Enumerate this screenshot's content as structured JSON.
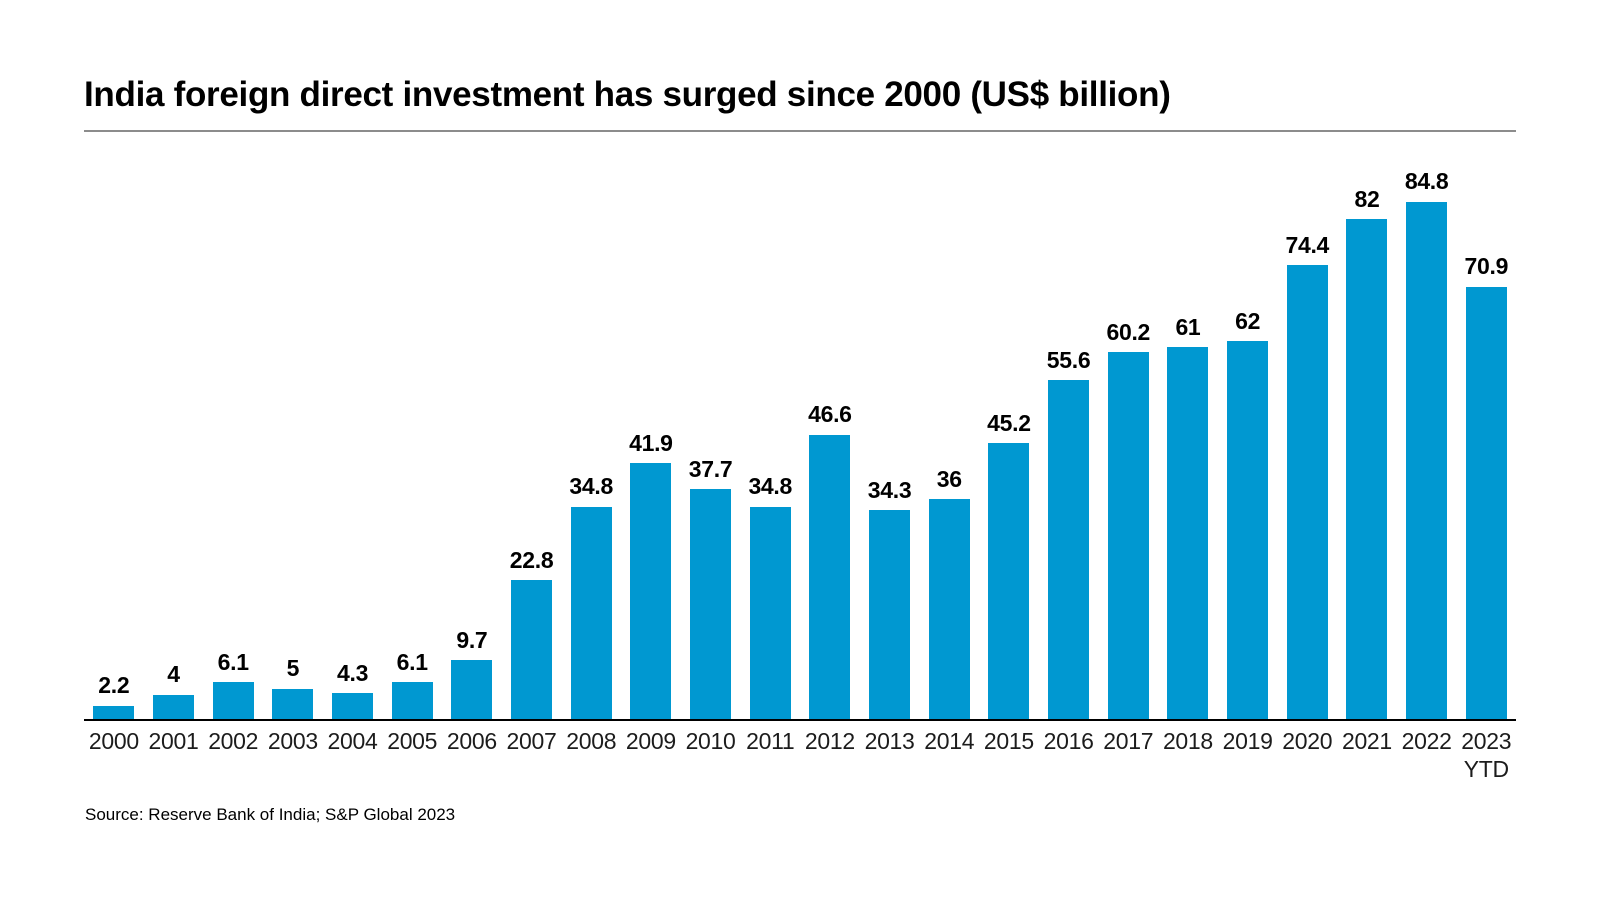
{
  "title": "India foreign direct investment has surged since 2000 (US$ billion)",
  "source": "Source: Reserve Bank of India; S&P Global 2023",
  "chart_data": {
    "type": "bar",
    "title": "India foreign direct investment has surged since 2000 (US$ billion)",
    "categories": [
      "2000",
      "2001",
      "2002",
      "2003",
      "2004",
      "2005",
      "2006",
      "2007",
      "2008",
      "2009",
      "2010",
      "2011",
      "2012",
      "2013",
      "2014",
      "2015",
      "2016",
      "2017",
      "2018",
      "2019",
      "2020",
      "2021",
      "2022",
      "2023 YTD"
    ],
    "values": [
      2.2,
      4,
      6.1,
      5,
      4.3,
      6.1,
      9.7,
      22.8,
      34.8,
      41.9,
      37.7,
      34.8,
      46.6,
      34.3,
      36,
      45.2,
      55.6,
      60.2,
      61,
      62,
      74.4,
      82,
      84.8,
      70.9
    ],
    "value_labels": [
      "2.2",
      "4",
      "6.1",
      "5",
      "4.3",
      "6.1",
      "9.7",
      "22.8",
      "34.8",
      "41.9",
      "37.7",
      "34.8",
      "46.6",
      "34.3",
      "36",
      "45.2",
      "55.6",
      "60.2",
      "61",
      "62",
      "74.4",
      "82",
      "84.8",
      "70.9"
    ],
    "tick_labels": [
      "2000",
      "2001",
      "2002",
      "2003",
      "2004",
      "2005",
      "2006",
      "2007",
      "2008",
      "2009",
      "2010",
      "2011",
      "2012",
      "2013",
      "2014",
      "2015",
      "2016",
      "2017",
      "2018",
      "2019",
      "2020",
      "2021",
      "2022",
      "2023"
    ],
    "tick_sublabels": [
      "",
      "",
      "",
      "",
      "",
      "",
      "",
      "",
      "",
      "",
      "",
      "",
      "",
      "",
      "",
      "",
      "",
      "",
      "",
      "",
      "",
      "",
      "",
      "YTD"
    ],
    "xlabel": "",
    "ylabel": "",
    "ylim": [
      0,
      90
    ],
    "grid": false,
    "legend": false,
    "data_label_position": "above",
    "bar_color": "#0098d1",
    "axis_color": "#000000",
    "label_color": "#000000",
    "tick_color": "#1c1c1c",
    "rule_color": "#8c8c8c"
  }
}
